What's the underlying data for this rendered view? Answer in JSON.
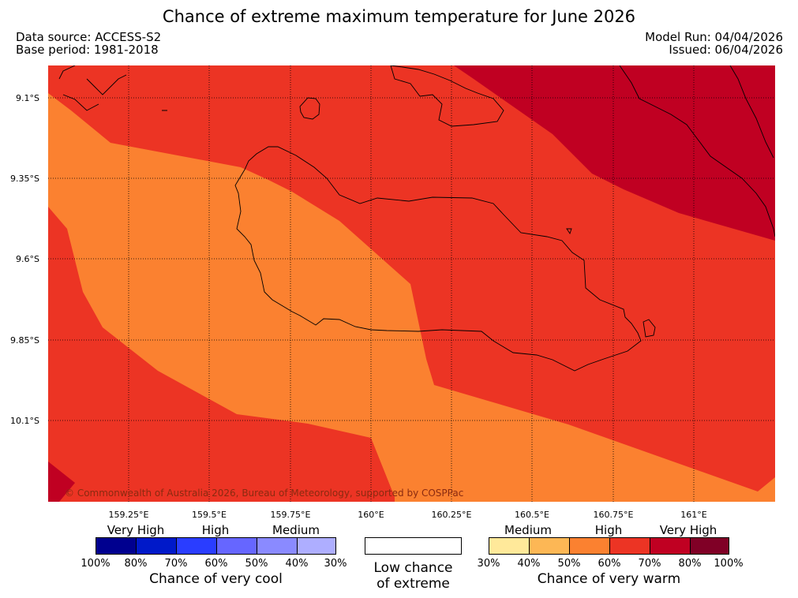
{
  "title": "Chance of extreme maximum temperature for June 2026",
  "meta": {
    "data_source": "Data source: ACCESS-S2",
    "base_period": "Base period: 1981-2018",
    "model_run": "Model Run: 04/04/2026",
    "issued": "Issued: 06/04/2026"
  },
  "map": {
    "lat_labels": [
      "9.1°S",
      "9.35°S",
      "9.6°S",
      "9.85°S",
      "10.1°S"
    ],
    "lon_labels": [
      "159.25°E",
      "159.5°E",
      "159.75°E",
      "160°E",
      "160.25°E",
      "160.5°E",
      "160.75°E",
      "161°E"
    ],
    "copyright": "© Commonwealth of Australia 2026, Bureau of Meteorology, supported by COSPPac",
    "colors": {
      "c40_50": "#fb8130",
      "c50_60": "#ee3423",
      "c60_70": "#ec3424",
      "c70_80": "#c00022"
    }
  },
  "legend": {
    "cool": {
      "captions": [
        "Very High",
        "High",
        "Medium"
      ],
      "colors": [
        "#00008f",
        "#0019c9",
        "#2a3dff",
        "#6666ff",
        "#8a8aff",
        "#aeaeff"
      ],
      "ticks": [
        "100%",
        "80%",
        "70%",
        "60%",
        "50%",
        "40%",
        "30%"
      ],
      "title": "Chance of very cool"
    },
    "neutral": {
      "line1": "Low chance",
      "line2": "of extreme"
    },
    "warm": {
      "captions": [
        "Medium",
        "High",
        "Very High"
      ],
      "colors": [
        "#ffe99a",
        "#fdb755",
        "#fb8130",
        "#ec3424",
        "#c00022",
        "#800026"
      ],
      "ticks": [
        "30%",
        "40%",
        "50%",
        "60%",
        "70%",
        "80%",
        "100%"
      ],
      "title": "Chance of very warm"
    }
  }
}
